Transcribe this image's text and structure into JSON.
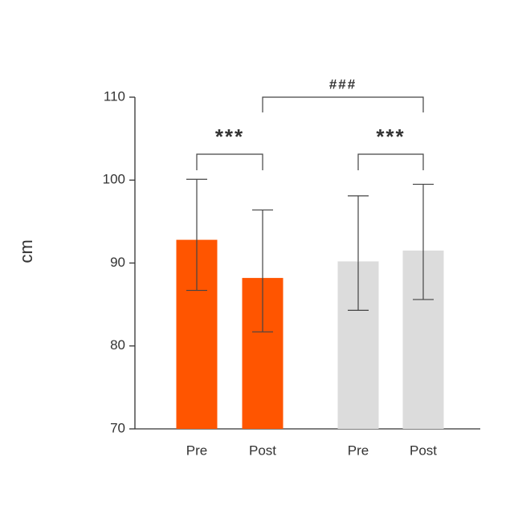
{
  "chart_data": {
    "type": "bar",
    "y_label": "cm",
    "categories": [
      "Pre",
      "Post",
      "Pre",
      "Post"
    ],
    "values": [
      92.8,
      88.2,
      90.2,
      91.5
    ],
    "error_upper": [
      7.3,
      8.2,
      7.9,
      8.0
    ],
    "error_lower": [
      6.1,
      6.5,
      5.9,
      5.9
    ],
    "colors": [
      "#ff5500",
      "#ff5500",
      "#dcdcdc",
      "#dcdcdc"
    ],
    "ylim": [
      70,
      110
    ],
    "yticks": [
      70,
      80,
      90,
      100,
      110
    ],
    "annotations": [
      "***",
      "***",
      "###"
    ]
  }
}
